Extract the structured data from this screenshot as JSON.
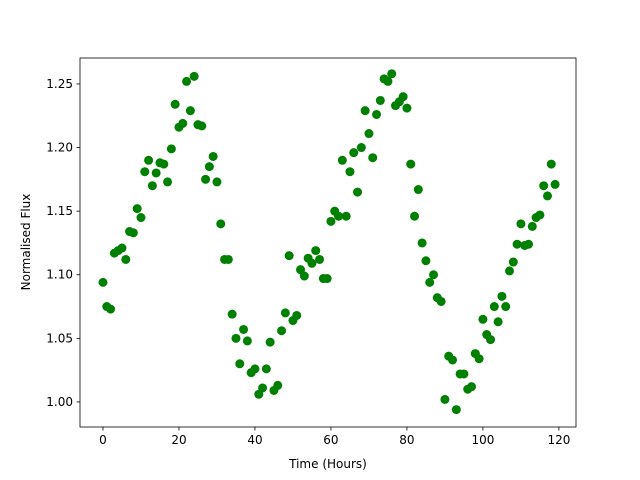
{
  "chart_data": {
    "type": "scatter",
    "xlabel": "Time (Hours)",
    "ylabel": "Normalised Flux",
    "color": "#008000",
    "x": [
      0,
      1,
      2,
      3,
      4,
      5,
      6,
      7,
      8,
      9,
      10,
      11,
      12,
      13,
      14,
      15,
      16,
      17,
      18,
      19,
      20,
      21,
      22,
      23,
      24,
      25,
      26,
      27,
      28,
      29,
      30,
      31,
      32,
      33,
      34,
      35,
      36,
      37,
      38,
      39,
      40,
      41,
      42,
      43,
      44,
      45,
      46,
      47,
      48,
      49,
      50,
      51,
      52,
      53,
      54,
      55,
      56,
      57,
      58,
      59,
      60,
      61,
      62,
      63,
      64,
      65,
      66,
      67,
      68,
      69,
      70,
      71,
      72,
      73,
      74,
      75,
      76,
      77,
      78,
      79,
      80,
      81,
      82,
      83,
      84,
      85,
      86,
      87,
      88,
      89,
      90,
      91,
      92,
      93,
      94,
      95,
      96,
      97,
      98,
      99,
      100,
      101,
      102,
      103,
      104,
      105,
      106,
      107,
      108,
      109,
      110,
      111,
      112,
      113,
      114,
      115,
      116,
      117,
      118,
      119
    ],
    "values": [
      1.094,
      1.075,
      1.073,
      1.117,
      1.119,
      1.121,
      1.112,
      1.134,
      1.133,
      1.152,
      1.145,
      1.181,
      1.19,
      1.17,
      1.18,
      1.188,
      1.187,
      1.173,
      1.199,
      1.234,
      1.216,
      1.219,
      1.252,
      1.229,
      1.256,
      1.218,
      1.217,
      1.175,
      1.185,
      1.193,
      1.173,
      1.14,
      1.112,
      1.112,
      1.069,
      1.05,
      1.03,
      1.057,
      1.048,
      1.023,
      1.026,
      1.006,
      1.011,
      1.026,
      1.047,
      1.009,
      1.013,
      1.056,
      1.07,
      1.115,
      1.064,
      1.068,
      1.104,
      1.099,
      1.113,
      1.109,
      1.119,
      1.112,
      1.097,
      1.097,
      1.142,
      1.15,
      1.146,
      1.19,
      1.146,
      1.181,
      1.196,
      1.165,
      1.2,
      1.229,
      1.211,
      1.192,
      1.226,
      1.237,
      1.254,
      1.252,
      1.258,
      1.233,
      1.236,
      1.24,
      1.231,
      1.187,
      1.146,
      1.167,
      1.125,
      1.111,
      1.094,
      1.1,
      1.082,
      1.079,
      1.002,
      1.036,
      1.033,
      0.994,
      1.022,
      1.022,
      1.01,
      1.012,
      1.038,
      1.034,
      1.065,
      1.053,
      1.049,
      1.075,
      1.063,
      1.083,
      1.075,
      1.103,
      1.11,
      1.124,
      1.14,
      1.123,
      1.124,
      1.138,
      1.145,
      1.147,
      1.17,
      1.162,
      1.187,
      1.171
    ],
    "xlim": [
      -6.05,
      124.5
    ],
    "ylim": [
      0.9803,
      1.2704
    ],
    "xticks": [
      0,
      20,
      40,
      60,
      80,
      100,
      120
    ],
    "yticks": [
      {
        "value": 1.0,
        "label": "1.00"
      },
      1.05,
      {
        "value": 1.1,
        "label": "1.10"
      },
      1.15,
      {
        "value": 1.2,
        "label": "1.20"
      },
      1.25
    ]
  }
}
